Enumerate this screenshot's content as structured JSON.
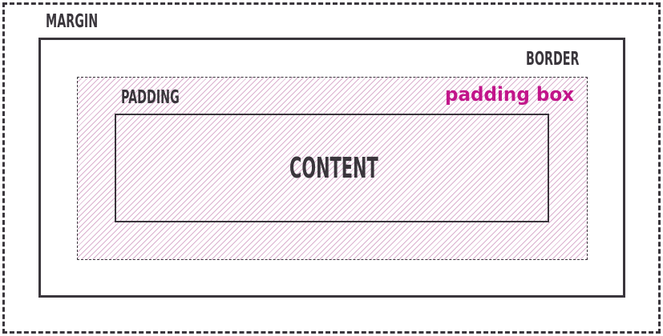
{
  "diagram": {
    "labels": {
      "margin": "MARGIN",
      "border": "BORDER",
      "padding": "PADDING",
      "content": "CONTENT",
      "padding_box": "padding box"
    },
    "colors": {
      "outline": "#3a363c",
      "hatch": "#cd96be",
      "highlight_text": "#c2148a",
      "background": "#ffffff"
    }
  }
}
